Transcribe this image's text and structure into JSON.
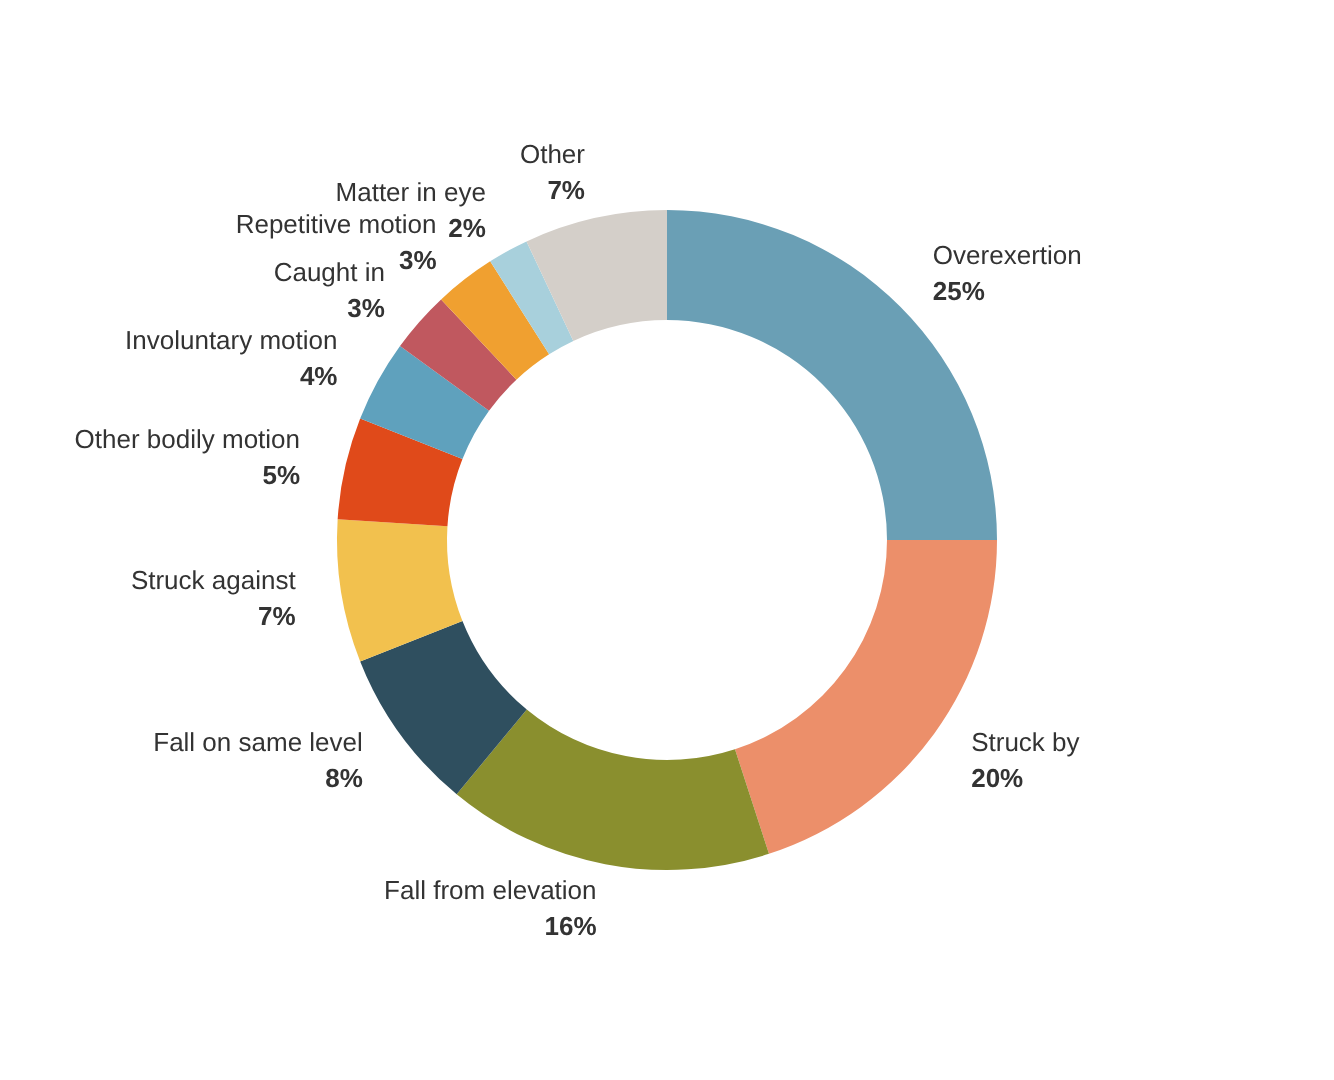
{
  "chart_data": {
    "type": "donut",
    "categories": [
      "Overexertion",
      "Struck by",
      "Fall from elevation",
      "Fall on same level",
      "Struck against",
      "Other bodily motion",
      "Involuntary motion",
      "Caught in",
      "Repetitive motion",
      "Matter in eye",
      "Other"
    ],
    "values": [
      25,
      20,
      16,
      8,
      7,
      5,
      4,
      3,
      3,
      2,
      7
    ],
    "colors": [
      "#6a9fb5",
      "#ec8f6a",
      "#8a8f2e",
      "#2f4f5f",
      "#f2c14e",
      "#e04a1a",
      "#5fa1bd",
      "#c0585f",
      "#f0a030",
      "#a8d0dc",
      "#d4cfc9"
    ],
    "value_labels": [
      "25%",
      "20%",
      "16%",
      "8%",
      "7%",
      "5%",
      "4%",
      "3%",
      "3%",
      "2%",
      "7%"
    ]
  }
}
